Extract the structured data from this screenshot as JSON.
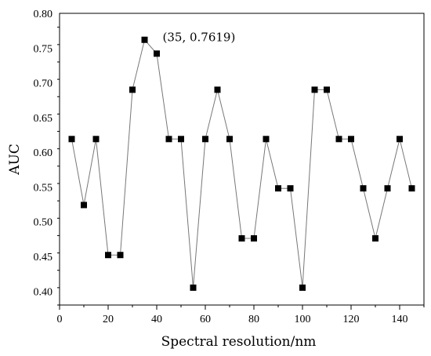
{
  "chart_data": {
    "type": "line",
    "xlabel": "Spectral resolution/nm",
    "ylabel": "AUC",
    "xlim": [
      0,
      150
    ],
    "ylim": [
      0.38,
      0.8
    ],
    "x_ticks": [
      0,
      20,
      40,
      60,
      80,
      100,
      120,
      140
    ],
    "x_tick_labels": [
      "0",
      "20",
      "40",
      "60",
      "80",
      "100",
      "120",
      "140"
    ],
    "y_ticks": [
      0.4,
      0.45,
      0.5,
      0.55,
      0.6,
      0.65,
      0.7,
      0.75,
      0.8
    ],
    "y_tick_labels": [
      "0.40",
      "0.45",
      "0.50",
      "0.55",
      "0.60",
      "0.65",
      "0.70",
      "0.75",
      "0.80"
    ],
    "grid": false,
    "series": [
      {
        "marker": "square",
        "line_color": "#777777",
        "marker_color": "#000000",
        "x": [
          5,
          10,
          15,
          20,
          25,
          30,
          35,
          40,
          45,
          50,
          55,
          60,
          65,
          70,
          75,
          80,
          85,
          90,
          95,
          100,
          105,
          110,
          115,
          120,
          125,
          130,
          135,
          140,
          145
        ],
        "y": [
          0.619,
          0.524,
          0.619,
          0.452,
          0.452,
          0.69,
          0.7619,
          0.742,
          0.619,
          0.619,
          0.405,
          0.619,
          0.69,
          0.619,
          0.476,
          0.476,
          0.619,
          0.548,
          0.548,
          0.405,
          0.69,
          0.69,
          0.619,
          0.619,
          0.548,
          0.476,
          0.548,
          0.619,
          0.548
        ]
      }
    ],
    "annotations": [
      {
        "text": "(35, 0.7619)",
        "x": 35,
        "y": 0.7619
      }
    ]
  }
}
